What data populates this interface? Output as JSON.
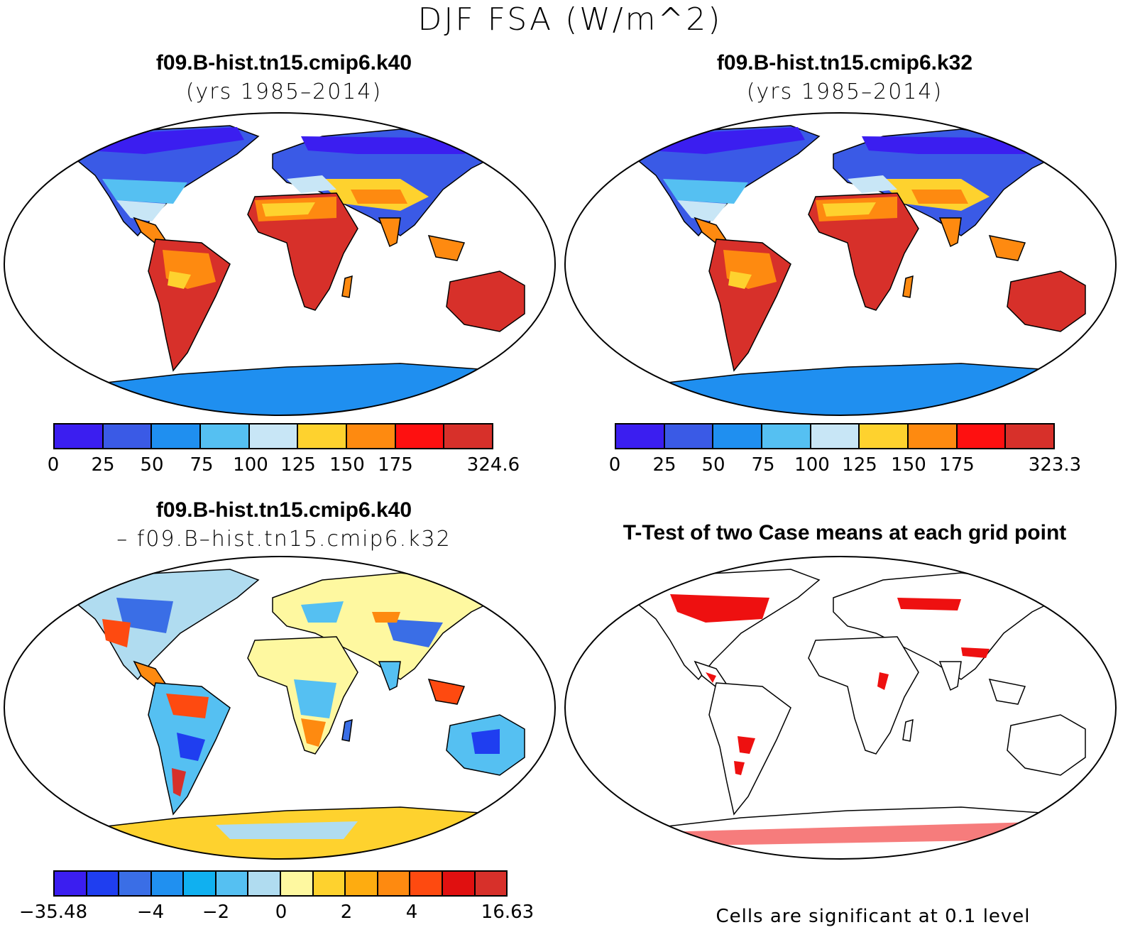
{
  "figure": {
    "title": "DJF FSA (W/m^2)"
  },
  "panels": [
    {
      "title": "f09.B-hist.tn15.cmip6.k40",
      "subtitle": "(yrs 1985–2014)",
      "colorbar": {
        "colors": [
          "#3b1ef0",
          "#3a5ae6",
          "#1f8ff0",
          "#55c0f2",
          "#c8e6f6",
          "#fed22e",
          "#fe8a10",
          "#fe1010",
          "#d7302a"
        ],
        "tick_labels": [
          "0",
          "25",
          "50",
          "75",
          "100",
          "125",
          "150",
          "175",
          "324.6"
        ]
      }
    },
    {
      "title": "f09.B-hist.tn15.cmip6.k32",
      "subtitle": "(yrs 1985–2014)",
      "colorbar": {
        "colors": [
          "#3b1ef0",
          "#3a5ae6",
          "#1f8ff0",
          "#55c0f2",
          "#c8e6f6",
          "#fed22e",
          "#fe8a10",
          "#fe1010",
          "#d7302a"
        ],
        "tick_labels": [
          "0",
          "25",
          "50",
          "75",
          "100",
          "125",
          "150",
          "175",
          "323.3"
        ]
      }
    },
    {
      "title": "f09.B-hist.tn15.cmip6.k40",
      "subtitle": "– f09.B–hist.tn15.cmip6.k32",
      "colorbar": {
        "colors": [
          "#3b1ef0",
          "#1f3ef0",
          "#3a6ee6",
          "#2090f0",
          "#10b0f0",
          "#55c0f2",
          "#b0dcf0",
          "#fef8a0",
          "#fed22e",
          "#feac10",
          "#fe8a10",
          "#fe4a10",
          "#e01010",
          "#d7302a"
        ],
        "tick_labels": [
          "−35.48",
          "−4",
          "−2",
          "0",
          "2",
          "4",
          "16.63"
        ]
      }
    },
    {
      "title": "T-Test of two Case means at each grid point",
      "note": "Cells are significant at 0.1 level",
      "significance_color": "#ee1010"
    }
  ]
}
